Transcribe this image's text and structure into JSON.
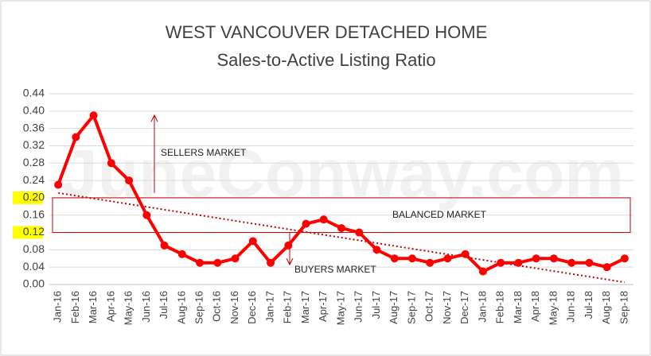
{
  "chart_data": {
    "type": "line",
    "title": "WEST VANCOUVER DETACHED HOME",
    "subtitle": "Sales-to-Active Listing Ratio",
    "watermark": "JuneConway.com",
    "categories": [
      "Jan-16",
      "Feb-16",
      "Mar-16",
      "Apr-16",
      "May-16",
      "Jun-16",
      "Jul-16",
      "Aug-16",
      "Sep-16",
      "Oct-16",
      "Nov-16",
      "Dec-16",
      "Jan-17",
      "Feb-17",
      "Mar-17",
      "Apr-17",
      "May-17",
      "Jun-17",
      "Jul-17",
      "Aug-17",
      "Sep-17",
      "Oct-17",
      "Nov-17",
      "Dec-17",
      "Jan-18",
      "Feb-18",
      "Mar-18",
      "Apr-18",
      "May-18",
      "Jun-18",
      "Jul-18",
      "Aug-18",
      "Sep-18"
    ],
    "values": [
      0.23,
      0.34,
      0.39,
      0.28,
      0.24,
      0.16,
      0.09,
      0.07,
      0.05,
      0.05,
      0.06,
      0.1,
      0.05,
      0.09,
      0.14,
      0.15,
      0.13,
      0.12,
      0.08,
      0.06,
      0.06,
      0.05,
      0.06,
      0.07,
      0.03,
      0.05,
      0.05,
      0.06,
      0.06,
      0.05,
      0.05,
      0.04,
      0.06
    ],
    "color": "#ff0000",
    "trendline": true,
    "ylim": [
      0,
      0.44
    ],
    "yticks": [
      {
        "value": 0,
        "label": "0.00"
      },
      {
        "value": 0.04,
        "label": "0.04"
      },
      {
        "value": 0.08,
        "label": "0.08"
      },
      {
        "value": 0.12,
        "label": "0.12",
        "highlight": true
      },
      {
        "value": 0.16,
        "label": "0.16"
      },
      {
        "value": 0.2,
        "label": "0.20",
        "highlight": true
      },
      {
        "value": 0.24,
        "label": "0.24"
      },
      {
        "value": 0.28,
        "label": "0.28"
      },
      {
        "value": 0.32,
        "label": "0.32"
      },
      {
        "value": 0.36,
        "label": "0.36"
      },
      {
        "value": 0.4,
        "label": "0.40"
      },
      {
        "value": 0.44,
        "label": "0.44"
      }
    ],
    "grid": true,
    "band": {
      "label": "BALANCED MARKET",
      "from": 0.12,
      "to": 0.2
    },
    "annotations": [
      {
        "text": "SELLERS MARKET",
        "arrow": "up"
      },
      {
        "text": "BUYERS MARKET",
        "arrow": "down"
      }
    ]
  }
}
